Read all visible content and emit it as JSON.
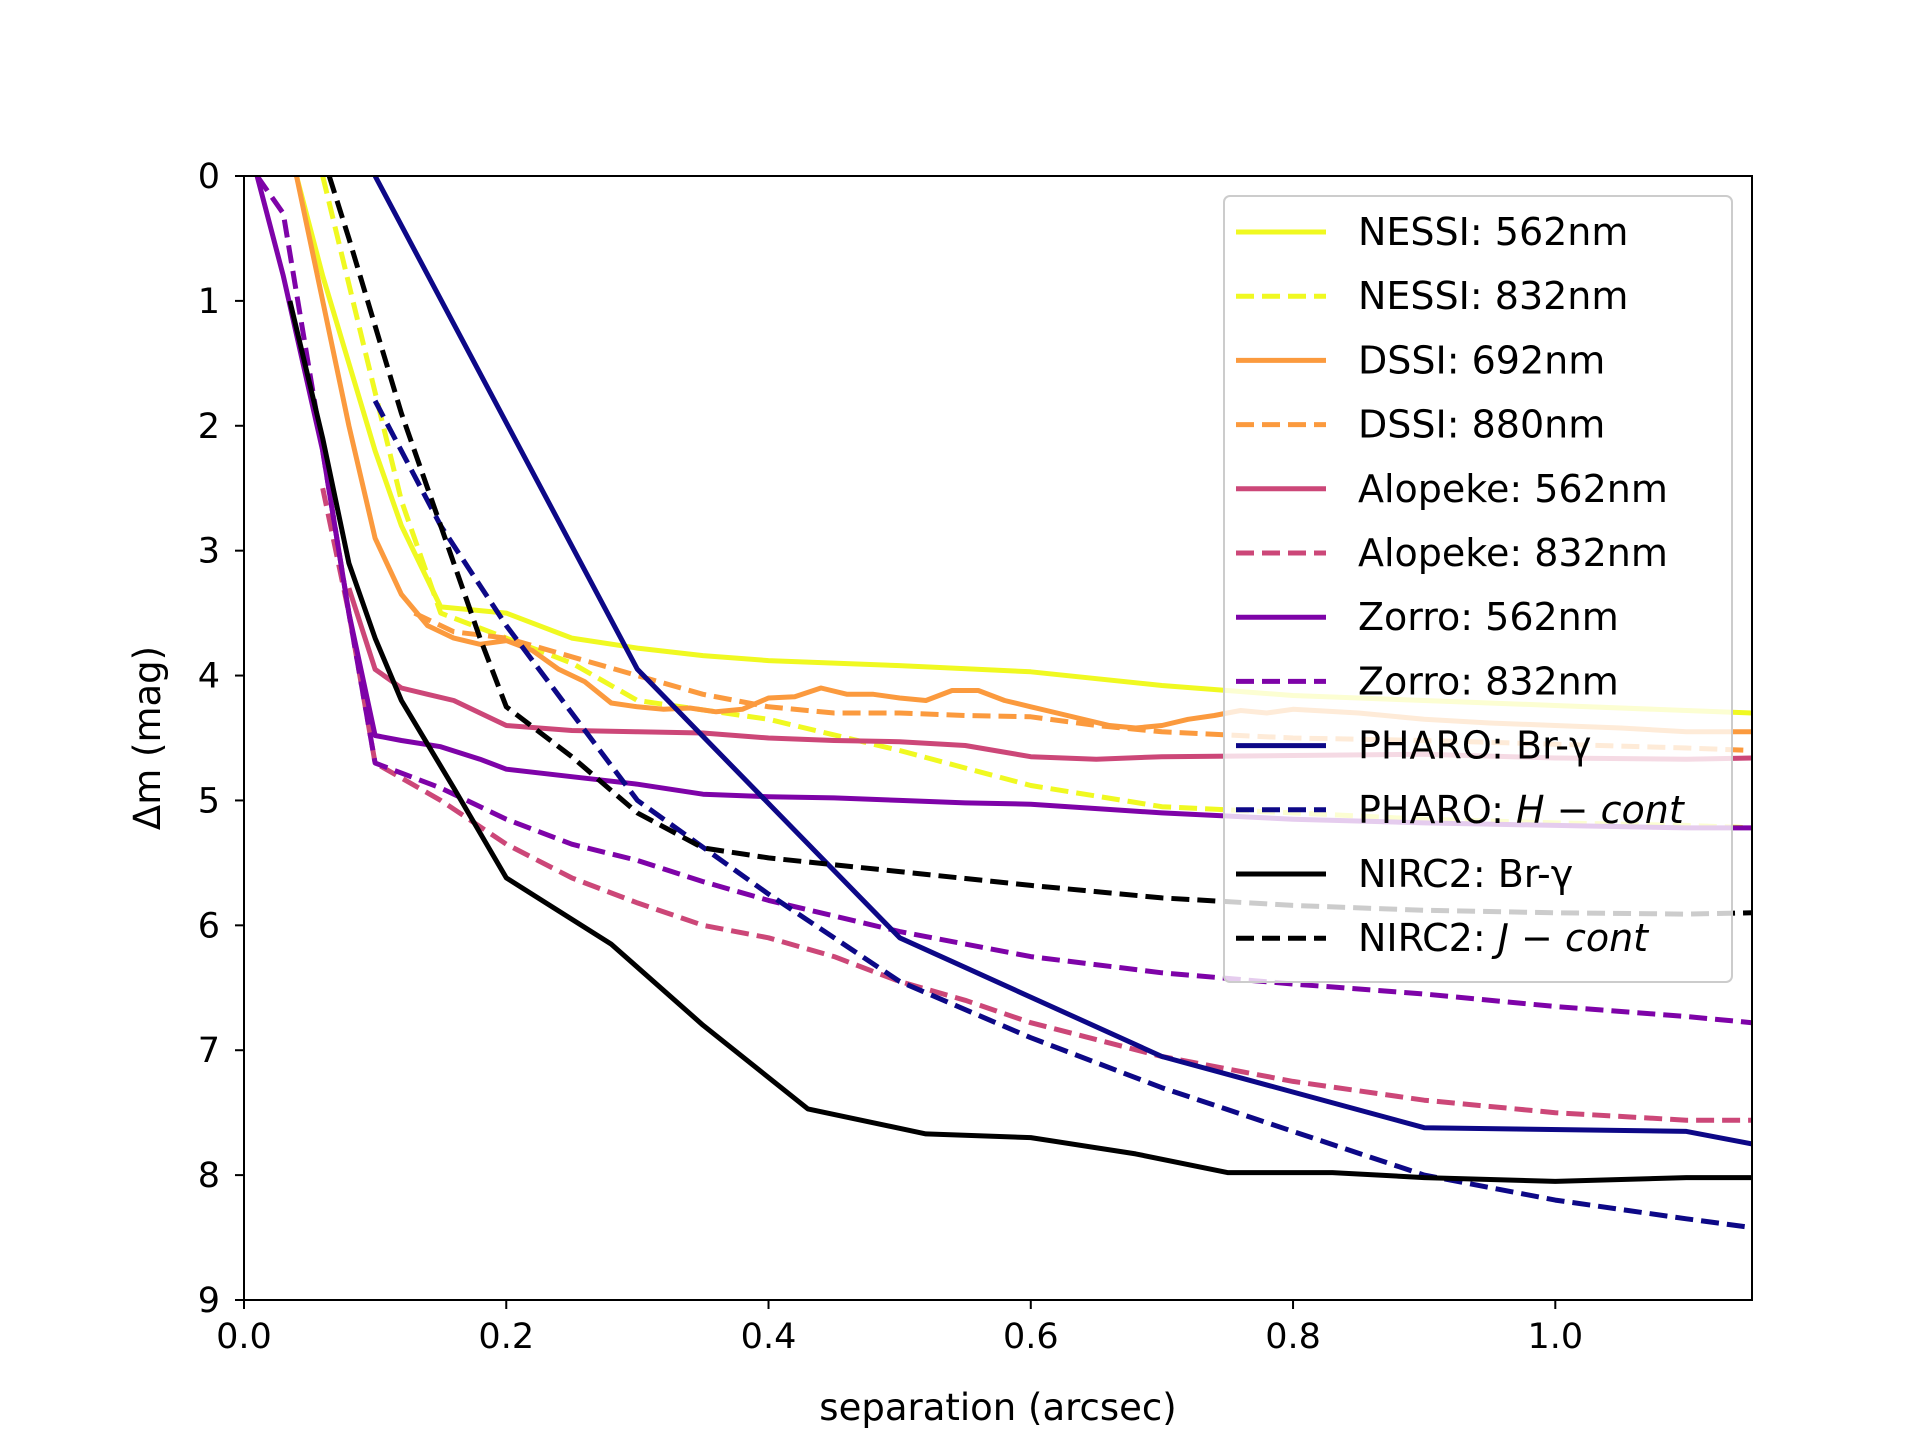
{
  "chart_data": {
    "type": "line",
    "title": "",
    "xlabel": "separation (arcsec)",
    "ylabel": "Δm (mag)",
    "xlim": [
      0.0,
      1.15
    ],
    "ylim": [
      9,
      0
    ],
    "y_inverted": true,
    "grid": false,
    "legend_position": "upper-right",
    "xticks": [
      0.0,
      0.2,
      0.4,
      0.6,
      0.8,
      1.0
    ],
    "xtick_labels": [
      "0.0",
      "0.2",
      "0.4",
      "0.6",
      "0.8",
      "1.0"
    ],
    "yticks": [
      0,
      1,
      2,
      3,
      4,
      5,
      6,
      7,
      8,
      9
    ],
    "ytick_labels": [
      "0",
      "1",
      "2",
      "3",
      "4",
      "5",
      "6",
      "7",
      "8",
      "9"
    ],
    "series": [
      {
        "name": "NESSI: 562nm",
        "label_plain": "NESSI: 562nm",
        "color": "#f0f921",
        "dash": "solid",
        "x": [
          0.04,
          0.06,
          0.08,
          0.1,
          0.12,
          0.15,
          0.2,
          0.25,
          0.3,
          0.35,
          0.4,
          0.5,
          0.6,
          0.7,
          0.8,
          0.9,
          1.0,
          1.1,
          1.15
        ],
        "y": [
          0.0,
          0.8,
          1.5,
          2.2,
          2.8,
          3.45,
          3.5,
          3.7,
          3.78,
          3.84,
          3.88,
          3.92,
          3.97,
          4.08,
          4.16,
          4.2,
          4.24,
          4.28,
          4.3
        ]
      },
      {
        "name": "NESSI: 832nm",
        "label_plain": "NESSI: 832nm",
        "color": "#f0f921",
        "dash": "dashed",
        "x": [
          0.06,
          0.09,
          0.12,
          0.15,
          0.2,
          0.25,
          0.3,
          0.4,
          0.5,
          0.6,
          0.7,
          0.8,
          0.9,
          1.0,
          1.1,
          1.15
        ],
        "y": [
          0.0,
          1.3,
          2.6,
          3.5,
          3.7,
          3.9,
          4.2,
          4.35,
          4.6,
          4.88,
          5.05,
          5.1,
          5.15,
          5.18,
          5.2,
          5.22
        ]
      },
      {
        "name": "DSSI: 692nm",
        "label_plain": "DSSI: 692nm",
        "color": "#fb9a3e",
        "dash": "solid",
        "x": [
          0.04,
          0.06,
          0.08,
          0.1,
          0.12,
          0.14,
          0.16,
          0.18,
          0.2,
          0.22,
          0.24,
          0.26,
          0.28,
          0.3,
          0.32,
          0.34,
          0.36,
          0.38,
          0.4,
          0.42,
          0.44,
          0.46,
          0.48,
          0.5,
          0.52,
          0.54,
          0.56,
          0.58,
          0.6,
          0.62,
          0.64,
          0.66,
          0.68,
          0.7,
          0.72,
          0.74,
          0.76,
          0.78,
          0.8,
          0.85,
          0.9,
          0.95,
          1.0,
          1.05,
          1.1,
          1.15
        ],
        "y": [
          0.0,
          1.0,
          2.0,
          2.9,
          3.35,
          3.6,
          3.7,
          3.75,
          3.72,
          3.8,
          3.95,
          4.05,
          4.22,
          4.25,
          4.27,
          4.26,
          4.29,
          4.27,
          4.18,
          4.17,
          4.1,
          4.15,
          4.15,
          4.18,
          4.2,
          4.12,
          4.12,
          4.2,
          4.25,
          4.3,
          4.35,
          4.4,
          4.42,
          4.4,
          4.35,
          4.32,
          4.28,
          4.3,
          4.27,
          4.3,
          4.35,
          4.38,
          4.4,
          4.42,
          4.45,
          4.45
        ]
      },
      {
        "name": "DSSI: 880nm",
        "label_plain": "DSSI: 880nm",
        "color": "#fb9a3e",
        "dash": "dashed",
        "x": [
          0.13,
          0.16,
          0.2,
          0.25,
          0.3,
          0.35,
          0.4,
          0.45,
          0.5,
          0.55,
          0.6,
          0.65,
          0.7,
          0.8,
          0.9,
          1.0,
          1.1,
          1.15
        ],
        "y": [
          3.5,
          3.65,
          3.7,
          3.85,
          4.0,
          4.15,
          4.25,
          4.3,
          4.3,
          4.32,
          4.33,
          4.4,
          4.45,
          4.5,
          4.52,
          4.55,
          4.58,
          4.6
        ]
      },
      {
        "name": "Alopeke: 562nm",
        "label_plain": "Alopeke: 562nm",
        "color": "#cc4778",
        "dash": "solid",
        "x": [
          0.08,
          0.1,
          0.12,
          0.14,
          0.16,
          0.18,
          0.2,
          0.25,
          0.3,
          0.35,
          0.4,
          0.45,
          0.5,
          0.55,
          0.6,
          0.65,
          0.7,
          0.8,
          0.9,
          1.0,
          1.1,
          1.15
        ],
        "y": [
          3.3,
          3.95,
          4.1,
          4.15,
          4.2,
          4.3,
          4.4,
          4.44,
          4.45,
          4.46,
          4.5,
          4.52,
          4.53,
          4.56,
          4.65,
          4.67,
          4.65,
          4.64,
          4.63,
          4.66,
          4.67,
          4.66
        ]
      },
      {
        "name": "Alopeke: 832nm",
        "label_plain": "Alopeke: 832nm",
        "color": "#cc4778",
        "dash": "dashed",
        "x": [
          0.06,
          0.08,
          0.1,
          0.15,
          0.2,
          0.25,
          0.3,
          0.35,
          0.4,
          0.45,
          0.5,
          0.55,
          0.6,
          0.7,
          0.8,
          0.9,
          1.0,
          1.1,
          1.15
        ],
        "y": [
          2.5,
          3.5,
          4.7,
          5.0,
          5.35,
          5.62,
          5.82,
          6.0,
          6.1,
          6.25,
          6.45,
          6.6,
          6.78,
          7.05,
          7.25,
          7.4,
          7.5,
          7.56,
          7.56
        ]
      },
      {
        "name": "Zorro: 562nm",
        "label_plain": "Zorro: 562nm",
        "color": "#7e03a8",
        "dash": "solid",
        "x": [
          0.01,
          0.03,
          0.06,
          0.08,
          0.1,
          0.12,
          0.15,
          0.18,
          0.2,
          0.25,
          0.3,
          0.35,
          0.4,
          0.45,
          0.5,
          0.55,
          0.6,
          0.7,
          0.8,
          0.9,
          1.0,
          1.1,
          1.15
        ],
        "y": [
          0.0,
          0.8,
          2.2,
          3.5,
          4.48,
          4.52,
          4.57,
          4.67,
          4.75,
          4.81,
          4.87,
          4.95,
          4.97,
          4.98,
          5.0,
          5.02,
          5.03,
          5.1,
          5.15,
          5.18,
          5.2,
          5.22,
          5.22
        ]
      },
      {
        "name": "Zorro: 832nm",
        "label_plain": "Zorro: 832nm",
        "color": "#7e03a8",
        "dash": "dashed",
        "x": [
          0.01,
          0.03,
          0.06,
          0.08,
          0.1,
          0.15,
          0.2,
          0.25,
          0.3,
          0.35,
          0.4,
          0.5,
          0.6,
          0.7,
          0.8,
          0.9,
          1.0,
          1.1,
          1.15
        ],
        "y": [
          0.0,
          0.3,
          2.2,
          3.5,
          4.7,
          4.9,
          5.15,
          5.35,
          5.48,
          5.65,
          5.8,
          6.05,
          6.25,
          6.38,
          6.47,
          6.55,
          6.65,
          6.73,
          6.78
        ]
      },
      {
        "name": "PHARO: Br-γ",
        "label_plain": "PHARO: Br-γ",
        "color": "#0d0887",
        "dash": "solid",
        "x": [
          0.1,
          0.3,
          0.5,
          0.7,
          0.9,
          1.1,
          1.15
        ],
        "y": [
          0.0,
          3.95,
          6.1,
          7.05,
          7.62,
          7.65,
          7.75
        ]
      },
      {
        "name": "PHARO: H-cont",
        "label_plain": "PHARO: ",
        "label_italic": "H − cont",
        "color": "#0d0887",
        "dash": "dashed",
        "x": [
          0.1,
          0.15,
          0.2,
          0.25,
          0.3,
          0.4,
          0.5,
          0.6,
          0.7,
          0.8,
          0.9,
          1.0,
          1.1,
          1.15
        ],
        "y": [
          1.8,
          2.8,
          3.6,
          4.3,
          5.0,
          5.75,
          6.45,
          6.9,
          7.3,
          7.65,
          8.0,
          8.2,
          8.35,
          8.42
        ]
      },
      {
        "name": "NIRC2: Br-γ",
        "label_plain": "NIRC2: Br-γ",
        "color": "#000000",
        "dash": "solid",
        "x": [
          0.035,
          0.06,
          0.08,
          0.1,
          0.12,
          0.16,
          0.2,
          0.28,
          0.35,
          0.43,
          0.52,
          0.6,
          0.68,
          0.75,
          0.83,
          0.9,
          1.0,
          1.1,
          1.15
        ],
        "y": [
          1.0,
          2.1,
          3.1,
          3.7,
          4.2,
          4.9,
          5.62,
          6.15,
          6.8,
          7.47,
          7.67,
          7.7,
          7.83,
          7.98,
          7.98,
          8.02,
          8.05,
          8.02,
          8.02
        ]
      },
      {
        "name": "NIRC2: J-cont",
        "label_plain": "NIRC2: ",
        "label_italic": "J − cont",
        "color": "#000000",
        "dash": "dashed",
        "x": [
          0.065,
          0.08,
          0.1,
          0.12,
          0.15,
          0.18,
          0.2,
          0.25,
          0.3,
          0.35,
          0.4,
          0.5,
          0.6,
          0.7,
          0.8,
          0.9,
          1.0,
          1.1,
          1.15
        ],
        "y": [
          0.0,
          0.5,
          1.2,
          1.9,
          2.8,
          3.7,
          4.25,
          4.65,
          5.1,
          5.38,
          5.46,
          5.57,
          5.68,
          5.78,
          5.84,
          5.88,
          5.9,
          5.91,
          5.9
        ]
      }
    ]
  }
}
